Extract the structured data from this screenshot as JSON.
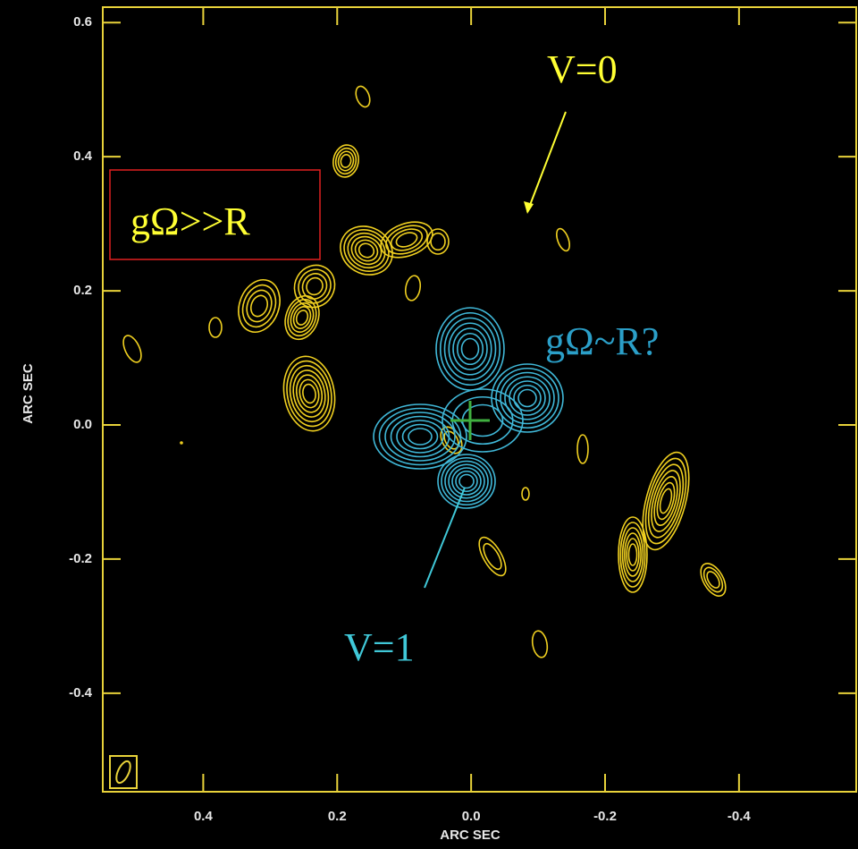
{
  "chart_data": {
    "type": "contour",
    "xlabel": "ARC SEC",
    "ylabel": "ARC SEC",
    "xlim": [
      0.55,
      -0.575
    ],
    "ylim": [
      -0.547,
      0.623
    ],
    "xticks": [
      0.4,
      0.2,
      {
        "value": 0,
        "label": "0.0"
      },
      -0.2,
      -0.4
    ],
    "yticks": [
      0.6,
      0.4,
      0.2,
      {
        "value": 0,
        "label": "0.0"
      },
      -0.2,
      -0.4
    ],
    "axis_color": "#e8d23a",
    "annotations": [
      {
        "text": "V=0",
        "color": "#ffff33"
      },
      {
        "text": "gΩ>>R",
        "color": "#ffff33"
      },
      {
        "text": "gΩ~R?",
        "color": "#2b9fc8"
      },
      {
        "text": "V=1",
        "color": "#40c8d8"
      }
    ]
  }
}
